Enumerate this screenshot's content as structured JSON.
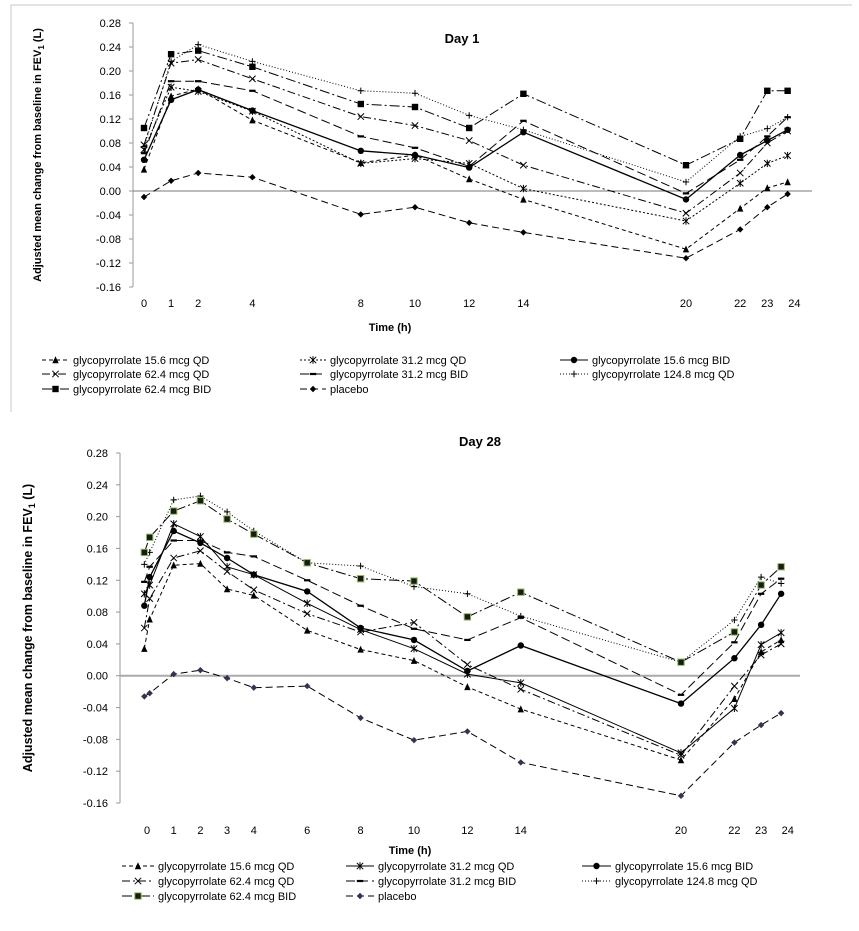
{
  "chart_data": [
    {
      "type": "line",
      "title": "Day 1",
      "xlabel": "Time (h)",
      "ylabel_parts": [
        "Adjusted mean change from baseline in FEV",
        "1",
        " (L)"
      ],
      "ylim": [
        -0.16,
        0.28
      ],
      "yticks": [
        "0.28",
        "0.24",
        "0.20",
        "0.16",
        "0.12",
        "0.08",
        "0.04",
        "0.00",
        "-0.04",
        "-0.08",
        "-0.12",
        "-0.16"
      ],
      "xticks": [
        "0",
        "1",
        "2",
        "4",
        "8",
        "10",
        "12",
        "14",
        "20",
        "22",
        "23",
        "24"
      ],
      "grid": false,
      "legend_position": "bottom",
      "x": [
        0,
        1,
        2,
        4,
        8,
        10,
        12,
        14,
        20,
        22,
        23,
        23.75
      ],
      "series": [
        {
          "name": "glycopyrrolate 15.6 mcg QD",
          "marker": "triangle",
          "values": [
            0.036,
            0.158,
            0.17,
            0.118,
            0.047,
            0.06,
            0.02,
            -0.014,
            -0.097,
            -0.029,
            0.005,
            0.015
          ]
        },
        {
          "name": "glycopyrrolate 31.2 mcg QD",
          "marker": "asterisk",
          "values": [
            0.069,
            0.173,
            0.166,
            0.133,
            0.046,
            0.054,
            0.046,
            0.004,
            -0.05,
            0.013,
            0.046,
            0.059
          ]
        },
        {
          "name": "glycopyrrolate 15.6 mcg BID",
          "marker": "circle",
          "values": [
            0.052,
            0.152,
            0.169,
            0.134,
            0.067,
            0.06,
            0.039,
            0.098,
            -0.014,
            0.06,
            0.084,
            0.102
          ]
        },
        {
          "name": "glycopyrrolate 62.4 mcg QD",
          "marker": "x",
          "values": [
            0.077,
            0.213,
            0.219,
            0.187,
            0.124,
            0.109,
            0.084,
            0.043,
            -0.037,
            0.03,
            0.08,
            0.1
          ]
        },
        {
          "name": "glycopyrrolate 31.2 mcg BID",
          "marker": "dash",
          "values": [
            0.063,
            0.183,
            0.183,
            0.167,
            0.091,
            0.072,
            0.041,
            0.117,
            -0.004,
            0.052,
            0.091,
            0.123
          ]
        },
        {
          "name": "glycopyrrolate 124.8 mcg QD",
          "marker": "plus",
          "values": [
            0.074,
            0.216,
            0.244,
            0.216,
            0.167,
            0.163,
            0.126,
            0.102,
            0.015,
            0.091,
            0.104,
            0.123
          ]
        },
        {
          "name": "glycopyrrolate 62.4 mcg BID",
          "marker": "square",
          "values": [
            0.105,
            0.228,
            0.234,
            0.207,
            0.145,
            0.14,
            0.105,
            0.162,
            0.043,
            0.087,
            0.167,
            0.167
          ]
        },
        {
          "name": "placebo",
          "marker": "diamond",
          "values": [
            -0.01,
            0.017,
            0.03,
            0.023,
            -0.039,
            -0.027,
            -0.053,
            -0.069,
            -0.112,
            -0.064,
            -0.027,
            -0.005
          ]
        }
      ]
    },
    {
      "type": "line",
      "title": "Day 28",
      "xlabel": "Time (h)",
      "ylabel_parts": [
        "Adjusted mean change from baseline in FEV",
        "1",
        " (L)"
      ],
      "ylim": [
        -0.16,
        0.28
      ],
      "yticks": [
        "0.28",
        "0.24",
        "0.20",
        "0.16",
        "0.12",
        "0.08",
        "0.04",
        "0.00",
        "-0.04",
        "-0.08",
        "-0.12",
        "-0.16"
      ],
      "xticks": [
        "0",
        "1",
        "2",
        "3",
        "4",
        "6",
        "8",
        "10",
        "12",
        "14",
        "20",
        "22",
        "23",
        "24"
      ],
      "grid": false,
      "legend_position": "bottom",
      "x": [
        -0.1,
        0.1,
        1,
        2,
        3,
        4,
        6,
        8,
        10,
        12,
        14,
        20,
        22,
        23,
        23.75
      ],
      "series": [
        {
          "name": "glycopyrrolate 15.6 mcg QD",
          "marker": "triangle",
          "values": [
            0.034,
            0.071,
            0.139,
            0.141,
            0.109,
            0.101,
            0.057,
            0.033,
            0.019,
            -0.014,
            -0.042,
            -0.106,
            -0.029,
            0.03,
            0.045
          ]
        },
        {
          "name": "glycopyrrolate 31.2 mcg QD",
          "marker": "asterisk",
          "values": [
            0.103,
            0.114,
            0.191,
            0.175,
            0.137,
            0.127,
            0.091,
            0.058,
            0.034,
            0.002,
            -0.009,
            -0.097,
            -0.041,
            0.039,
            0.054
          ]
        },
        {
          "name": "glycopyrrolate 15.6 mcg BID",
          "marker": "circle",
          "values": [
            0.088,
            0.124,
            0.182,
            0.167,
            0.148,
            0.127,
            0.106,
            0.06,
            0.045,
            0.006,
            0.038,
            -0.035,
            0.022,
            0.064,
            0.103
          ]
        },
        {
          "name": "glycopyrrolate 62.4 mcg QD",
          "marker": "x",
          "values": [
            0.06,
            0.097,
            0.148,
            0.157,
            0.131,
            0.108,
            0.078,
            0.055,
            0.067,
            0.014,
            -0.017,
            -0.1,
            -0.013,
            0.026,
            0.04
          ]
        },
        {
          "name": "glycopyrrolate 31.2 mcg BID",
          "marker": "dash",
          "values": [
            0.118,
            0.137,
            0.17,
            0.17,
            0.155,
            0.15,
            0.12,
            0.088,
            0.059,
            0.045,
            0.073,
            -0.024,
            0.042,
            0.103,
            0.122
          ]
        },
        {
          "name": "glycopyrrolate 124.8 mcg QD",
          "marker": "plus",
          "values": [
            0.14,
            0.155,
            0.221,
            0.226,
            0.206,
            0.182,
            0.142,
            0.138,
            0.112,
            0.103,
            0.075,
            0.017,
            0.07,
            0.124,
            0.116
          ]
        },
        {
          "name": "glycopyrrolate 62.4 mcg BID",
          "marker": "square",
          "values": [
            0.155,
            0.174,
            0.207,
            0.22,
            0.197,
            0.178,
            0.142,
            0.122,
            0.119,
            0.074,
            0.105,
            0.017,
            0.055,
            0.114,
            0.137
          ]
        },
        {
          "name": "placebo",
          "marker": "diamond",
          "values": [
            -0.026,
            -0.022,
            0.002,
            0.007,
            -0.003,
            -0.015,
            -0.013,
            -0.053,
            -0.081,
            -0.07,
            -0.109,
            -0.151,
            -0.084,
            -0.062,
            -0.047
          ]
        }
      ]
    }
  ]
}
